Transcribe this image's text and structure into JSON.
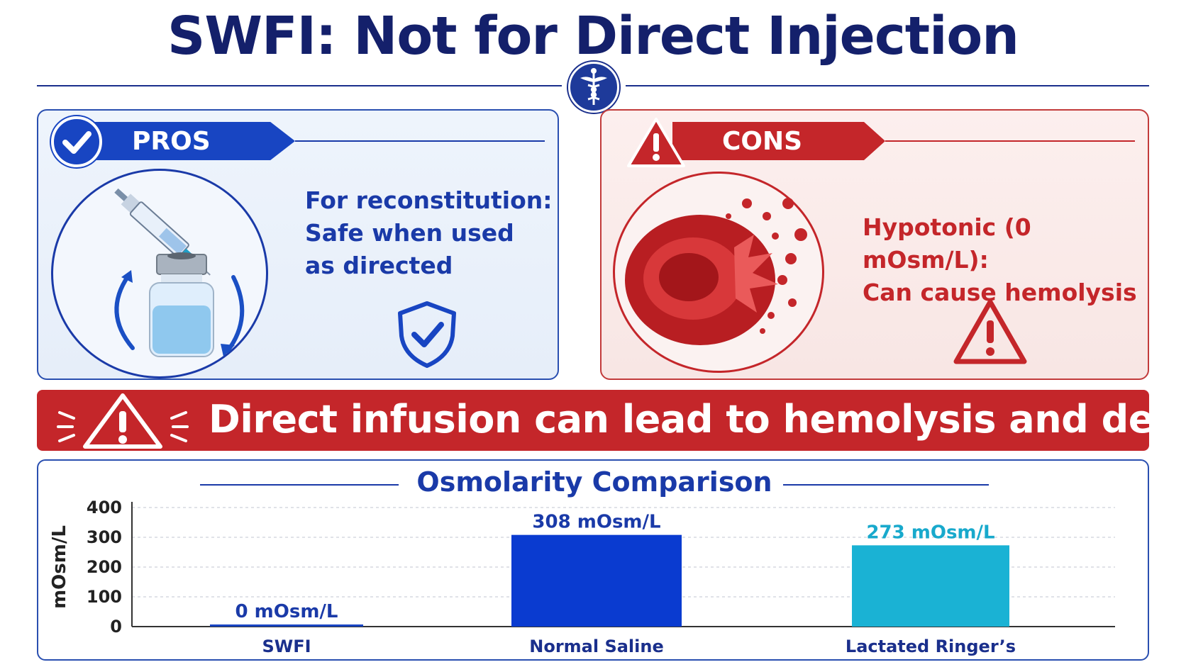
{
  "title": "SWFI: Not for Direct Injection",
  "colors": {
    "navy": "#14206b",
    "blue": "#1845c2",
    "red": "#c4262a",
    "teal": "#18b4d6"
  },
  "pros": {
    "tag": "PROS",
    "lines": [
      "For reconstitution:",
      "Safe when used",
      "as directed"
    ]
  },
  "cons": {
    "tag": "CONS",
    "lines": [
      "Hypotonic (0 mOsm/L):",
      "Can cause hemolysis"
    ]
  },
  "banner": {
    "text": "Direct infusion can lead to hemolysis and death"
  },
  "chart_data": {
    "type": "bar",
    "title": "Osmolarity Comparison",
    "xlabel": "",
    "ylabel": "mOsm/L",
    "ylim": [
      0,
      400
    ],
    "yticks": [
      0,
      100,
      200,
      300,
      400
    ],
    "grid": true,
    "categories": [
      "SWFI",
      "Normal Saline",
      "Lactated Ringer’s"
    ],
    "values": [
      0,
      308,
      273
    ],
    "data_labels": [
      "0 mOsm/L",
      "308 mOsm/L",
      "273 mOsm/L"
    ],
    "bar_colors": [
      "#1845c2",
      "#0a3bd0",
      "#1ab2d4"
    ],
    "label_colors": [
      "#1a3aa8",
      "#1a3aa8",
      "#18a9cc"
    ]
  }
}
